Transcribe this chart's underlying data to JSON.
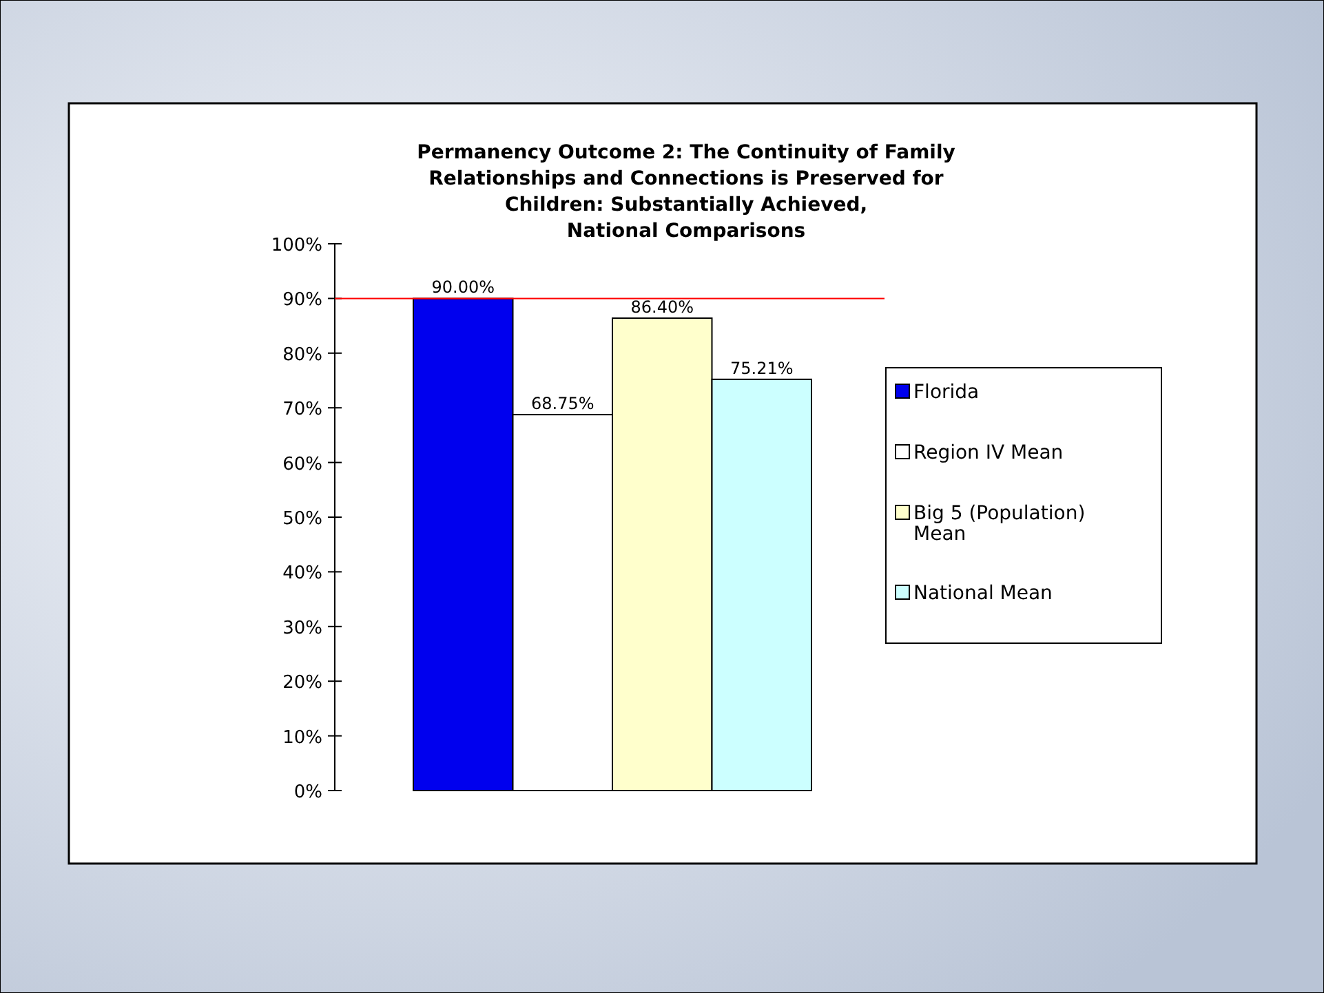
{
  "chart_data": {
    "type": "bar",
    "title": "Permanency Outcome 2: The Continuity of Family\nRelationships and Connections is Preserved for\nChildren: Substantially Achieved,\nNational Comparisons",
    "categories": [
      null
    ],
    "series": [
      {
        "name": "Florida",
        "color": "#0000ee",
        "values": [
          90.0
        ],
        "value_labels": [
          "90.00%"
        ]
      },
      {
        "name": "Region IV Mean",
        "color": "#ffffff",
        "values": [
          68.75
        ],
        "value_labels": [
          "68.75%"
        ]
      },
      {
        "name": "Big 5 (Population) Mean",
        "color": "#ffffcc",
        "values": [
          86.4
        ],
        "value_labels": [
          "86.40%"
        ]
      },
      {
        "name": "National Mean",
        "color": "#ccffff",
        "values": [
          75.21
        ],
        "value_labels": [
          "75.21%"
        ]
      }
    ],
    "ylim": [
      0,
      100
    ],
    "yticks": [
      {
        "value": 0,
        "label": "0%"
      },
      {
        "value": 10,
        "label": "10%"
      },
      {
        "value": 20,
        "label": "20%"
      },
      {
        "value": 30,
        "label": "30%"
      },
      {
        "value": 40,
        "label": "40%"
      },
      {
        "value": 50,
        "label": "50%"
      },
      {
        "value": 60,
        "label": "60%"
      },
      {
        "value": 70,
        "label": "70%"
      },
      {
        "value": 80,
        "label": "80%"
      },
      {
        "value": 90,
        "label": "90%"
      },
      {
        "value": 100,
        "label": "100%"
      }
    ],
    "ref_lines": [
      {
        "axis": "y",
        "value": 90,
        "color": "#ff0000"
      }
    ],
    "grid": false,
    "legend": "right"
  }
}
